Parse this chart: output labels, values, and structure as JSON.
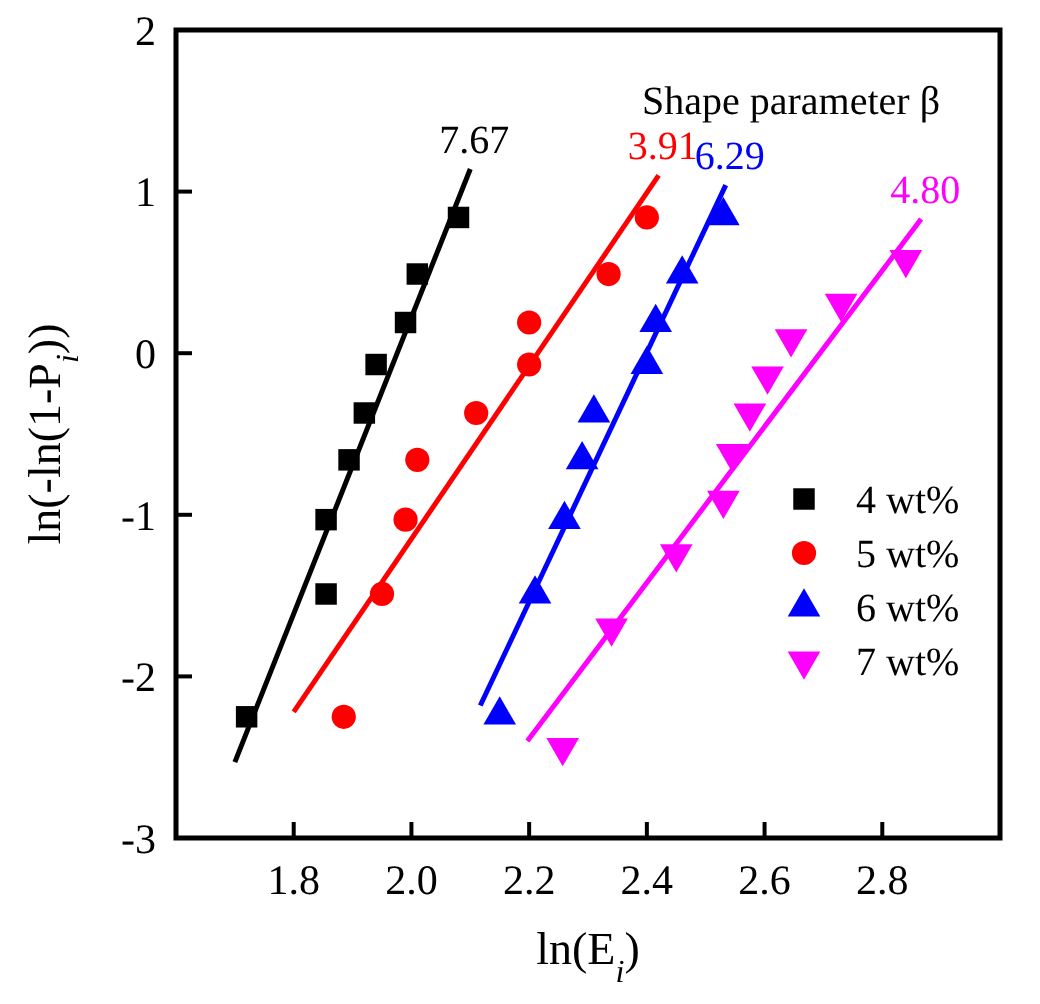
{
  "chart_data": {
    "type": "scatter",
    "xlabel": "ln(E$_{i}$)",
    "ylabel": "ln(-ln(1-P$_{i}$))",
    "xlim": [
      1.6,
      3.0
    ],
    "ylim": [
      -3,
      2
    ],
    "xticks": [
      1.8,
      {
        "value": 2,
        "label": "2.0"
      },
      2.2,
      2.4,
      2.6,
      2.8
    ],
    "yticks": [
      -3,
      -2,
      -1,
      0,
      1,
      2
    ],
    "grid": false,
    "legend": "bottom right",
    "series": [
      {
        "name": "4 wt%",
        "color": "#000000",
        "marker": "square",
        "x": [
          1.72,
          1.855,
          1.855,
          1.894,
          1.92,
          1.94,
          1.99,
          2.01,
          2.08
        ],
        "values": [
          -2.25,
          -1.03,
          -1.49,
          -0.66,
          -0.37,
          -0.07,
          0.19,
          0.49,
          0.84
        ]
      },
      {
        "name": "5 wt%",
        "color": "#ff0000",
        "marker": "circle",
        "x": [
          1.885,
          1.95,
          1.99,
          2.01,
          2.11,
          2.2,
          2.2,
          2.335,
          2.4
        ],
        "values": [
          -2.25,
          -1.49,
          -1.03,
          -0.66,
          -0.37,
          -0.07,
          0.19,
          0.49,
          0.84
        ]
      },
      {
        "name": "6 wt%",
        "color": "#0000ff",
        "marker": "triangle",
        "x": [
          2.15,
          2.21,
          2.26,
          2.29,
          2.31,
          2.4,
          2.415,
          2.46,
          2.53
        ],
        "values": [
          -2.24,
          -1.49,
          -1.03,
          -0.66,
          -0.37,
          -0.07,
          0.19,
          0.49,
          0.85
        ]
      },
      {
        "name": "7 wt%",
        "color": "#ff00ff",
        "marker": "triangle-down",
        "x": [
          2.257,
          2.34,
          2.45,
          2.53,
          2.545,
          2.575,
          2.605,
          2.645,
          2.73,
          2.84
        ],
        "values": [
          -2.44,
          -1.7,
          -1.24,
          -0.91,
          -0.62,
          -0.37,
          -0.14,
          0.09,
          0.31,
          0.58
        ]
      },
      {
        "type": "line",
        "color": "#000000",
        "x": [
          1.7,
          2.1
        ],
        "values": [
          -2.53,
          1.14
        ]
      },
      {
        "type": "line",
        "color": "#ff0000",
        "x": [
          1.8,
          2.42
        ],
        "values": [
          -2.22,
          1.1
        ]
      },
      {
        "type": "line",
        "color": "#0000ff",
        "x": [
          2.117,
          2.534
        ],
        "values": [
          -2.18,
          1.04
        ]
      },
      {
        "type": "line",
        "color": "#ff00ff",
        "x": [
          2.197,
          2.866
        ],
        "values": [
          -2.4,
          0.83
        ]
      }
    ],
    "annotations": [
      "Shape parameter β",
      {
        "text": "7.67",
        "x": 2.1,
        "y": 1.14
      },
      {
        "text": "3.91",
        "x": 2.42,
        "y": 1.1
      },
      {
        "text": "6.29",
        "x": 2.534,
        "y": 1.04
      },
      {
        "text": "4.80",
        "x": 2.866,
        "y": 0.83
      }
    ]
  }
}
